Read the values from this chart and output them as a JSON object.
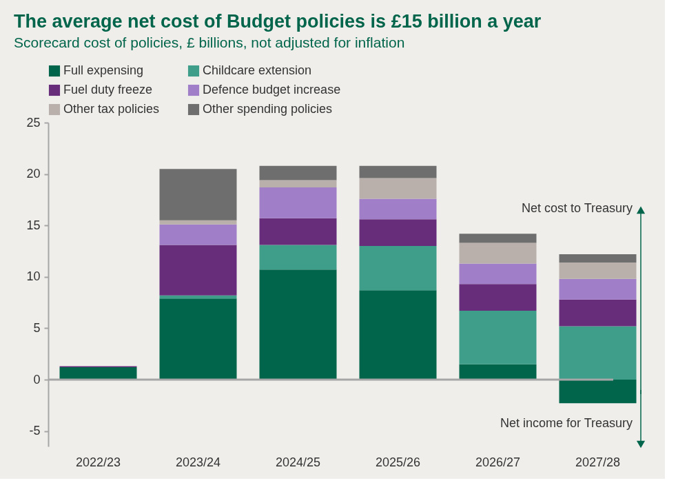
{
  "chart_data": {
    "type": "bar",
    "stacked": true,
    "title": "The average net cost of Budget policies is £15 billion a year",
    "subtitle": "Scorecard cost of policies, £ billions, not adjusted for inflation",
    "categories": [
      "2022/23",
      "2023/24",
      "2024/25",
      "2025/26",
      "2026/27",
      "2027/28"
    ],
    "series": [
      {
        "name": "Full expensing",
        "color": "#00654a",
        "values": [
          1.2,
          7.9,
          10.7,
          8.7,
          1.5,
          -2.3
        ]
      },
      {
        "name": "Childcare extension",
        "color": "#3f9e89",
        "values": [
          null,
          0.3,
          2.4,
          4.3,
          5.2,
          5.2
        ]
      },
      {
        "name": "Fuel duty freeze",
        "color": "#672d7b",
        "values": [
          0.1,
          4.9,
          2.6,
          2.6,
          2.6,
          2.6
        ]
      },
      {
        "name": "Defence budget increase",
        "color": "#a07fc8",
        "values": [
          null,
          2.0,
          3.0,
          2.0,
          2.0,
          2.0
        ]
      },
      {
        "name": "Other tax policies",
        "color": "#bab0ab",
        "values": [
          null,
          0.4,
          0.7,
          2.0,
          2.0,
          1.6
        ]
      },
      {
        "name": "Other spending policies",
        "color": "#6e6e6e",
        "values": [
          null,
          5.0,
          1.4,
          1.2,
          0.9,
          0.8
        ]
      }
    ],
    "ylim": [
      -6.5,
      25
    ],
    "yticks": [
      -5,
      0,
      5,
      10,
      15,
      20,
      25
    ],
    "grid": false,
    "legend": "top",
    "ref_lines": [
      {
        "axis": "y",
        "value": 0,
        "color": "#a6a6a6"
      }
    ],
    "annotations": [
      "Net cost to Treasury",
      "Net income for Treasury"
    ]
  }
}
